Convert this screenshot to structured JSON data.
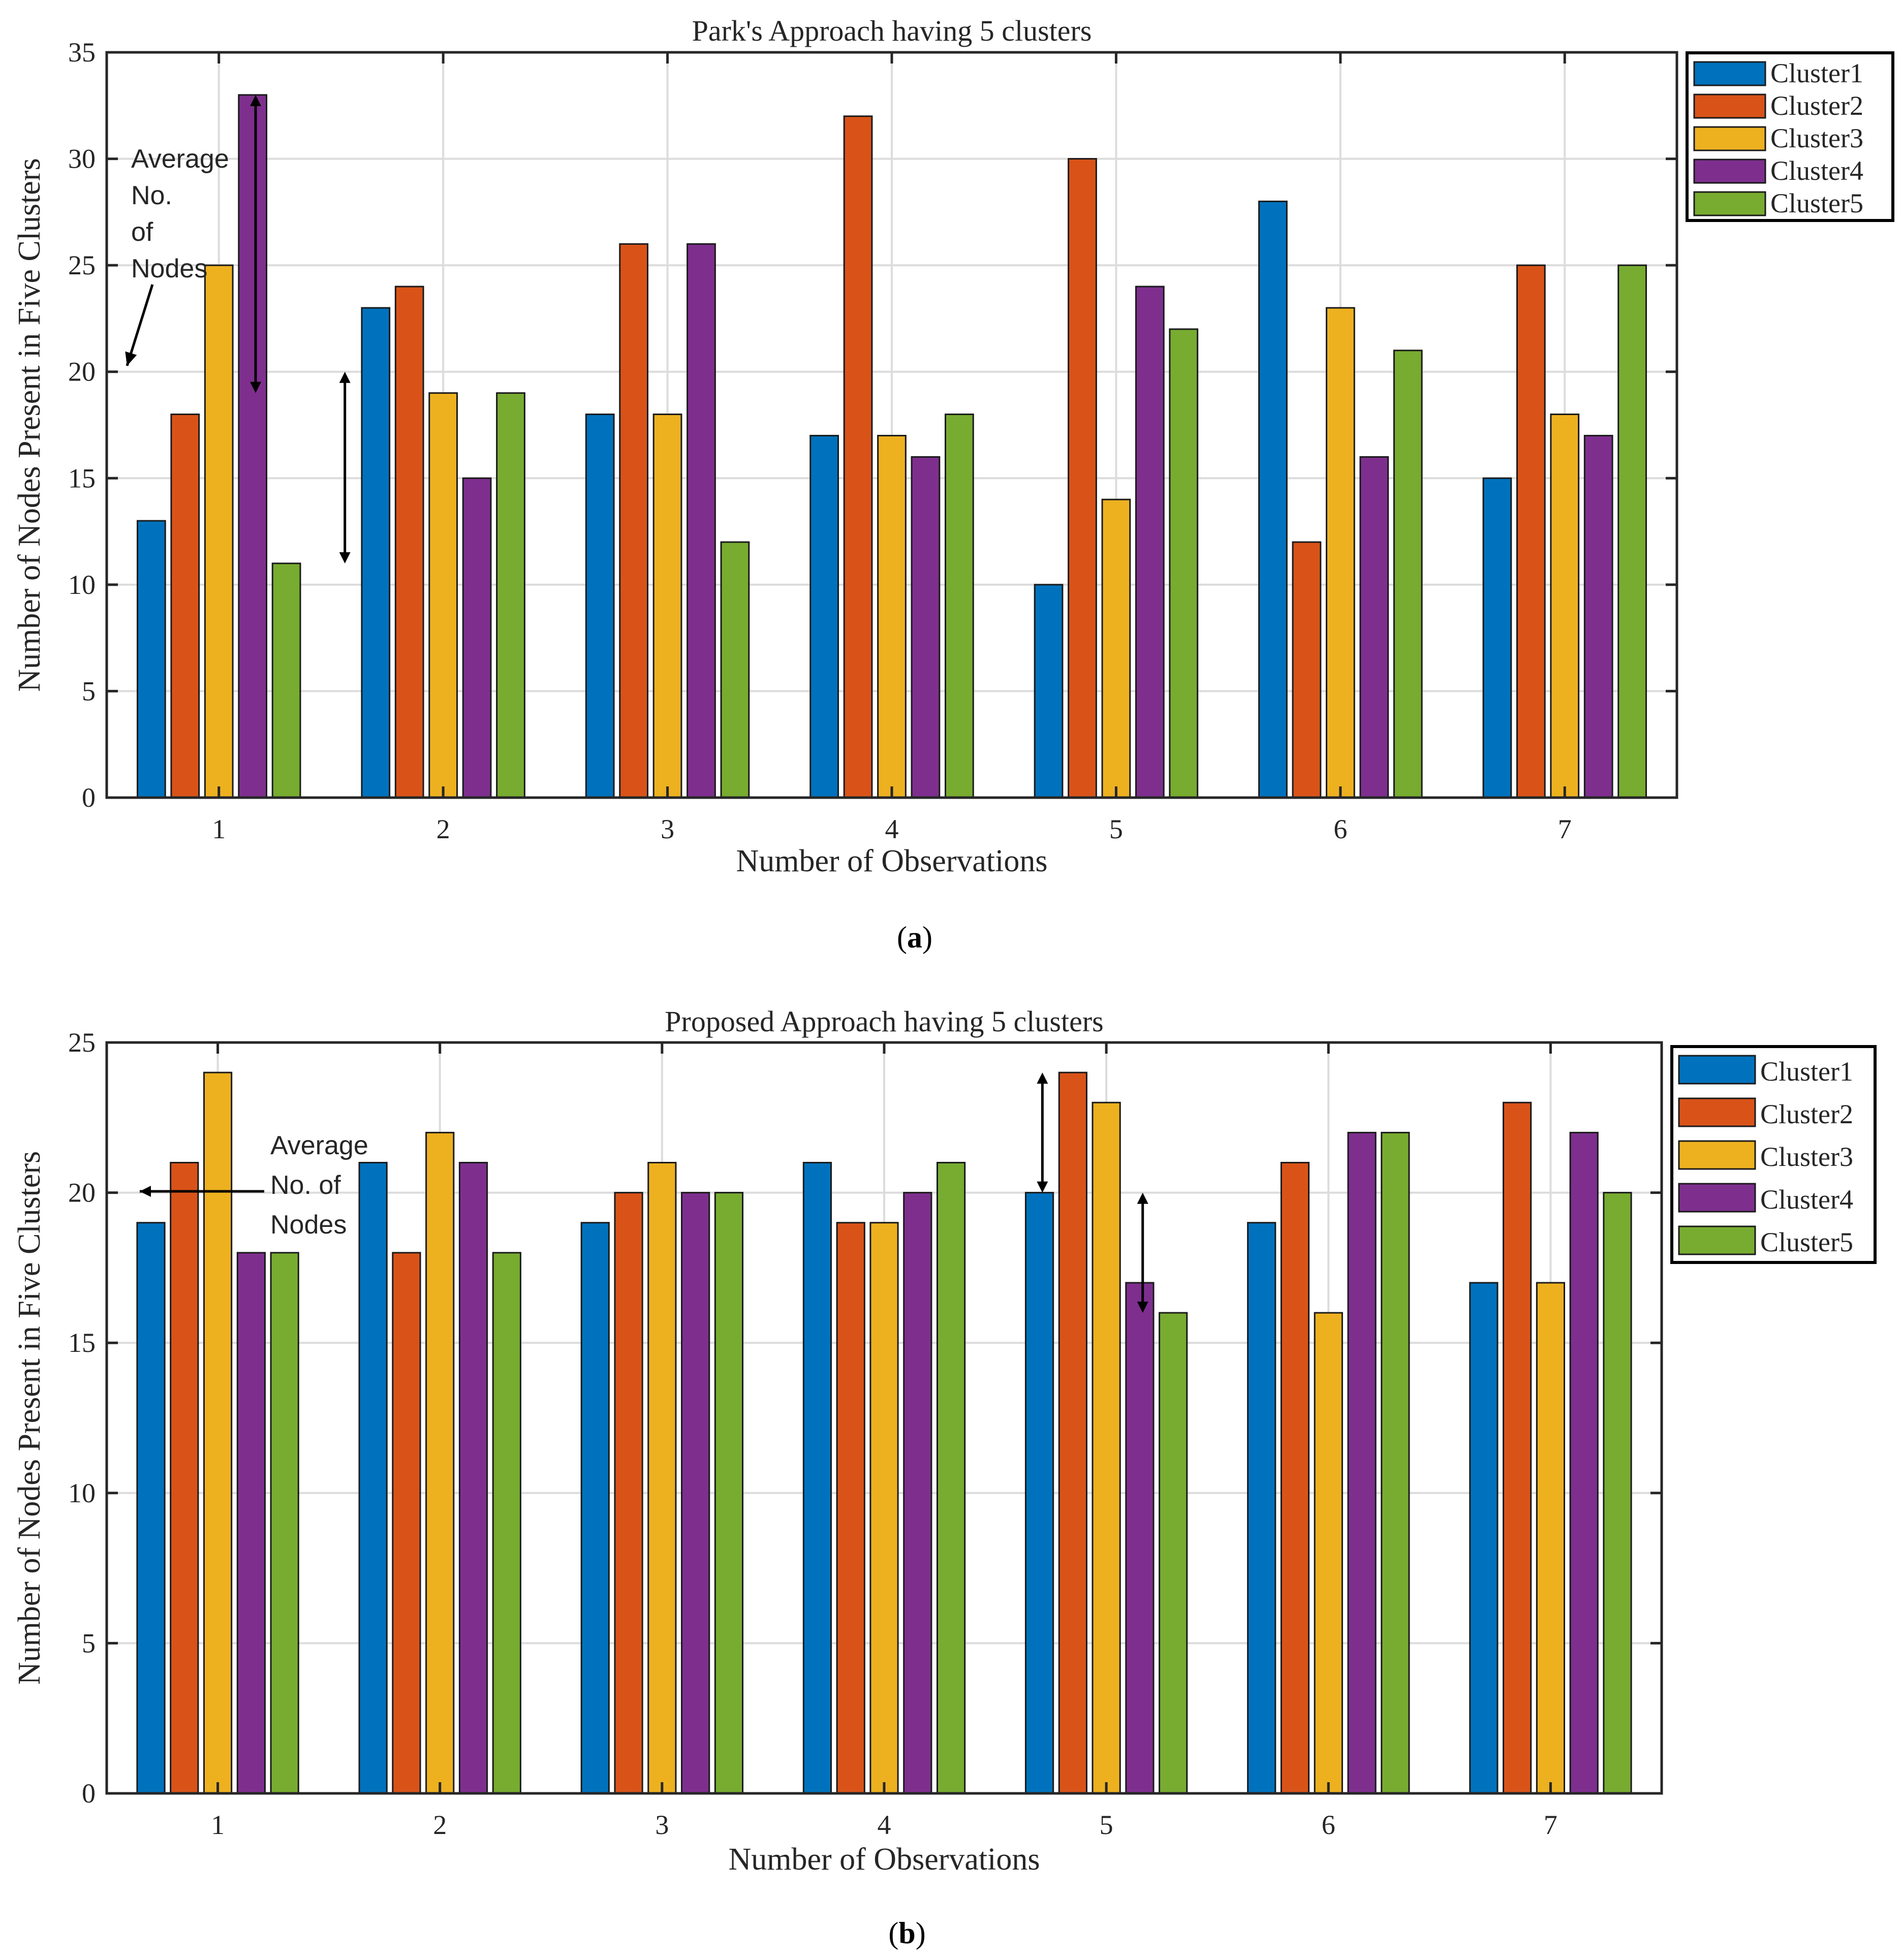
{
  "colors": [
    "#0072BD",
    "#D95319",
    "#EDB120",
    "#7E2F8E",
    "#77AC30"
  ],
  "chart_data": [
    {
      "type": "bar",
      "panel": "a",
      "caption_letter": "a",
      "title": "Park's Approach having 5 clusters",
      "xlabel": "Number of Observations",
      "ylabel": "Number of Nodes Present in Five Clusters",
      "categories": [
        "1",
        "2",
        "3",
        "4",
        "5",
        "6",
        "7"
      ],
      "ylim": [
        0,
        35
      ],
      "yticks": [
        "0",
        "5",
        "10",
        "15",
        "20",
        "25",
        "30",
        "35"
      ],
      "grid": true,
      "legend_position": "top-right outside",
      "series": [
        {
          "name": "Cluster1",
          "values": [
            13,
            23,
            18,
            17,
            10,
            28,
            15
          ]
        },
        {
          "name": "Cluster2",
          "values": [
            18,
            24,
            26,
            32,
            30,
            12,
            25
          ]
        },
        {
          "name": "Cluster3",
          "values": [
            25,
            19,
            18,
            17,
            14,
            23,
            18
          ]
        },
        {
          "name": "Cluster4",
          "values": [
            33,
            15,
            26,
            16,
            24,
            16,
            17
          ]
        },
        {
          "name": "Cluster5",
          "values": [
            11,
            19,
            12,
            18,
            22,
            21,
            25
          ]
        }
      ],
      "annotation": {
        "lines": [
          "Average",
          "No.",
          "of",
          "Nodes"
        ]
      }
    },
    {
      "type": "bar",
      "panel": "b",
      "caption_letter": "b",
      "title": "Proposed Approach having 5 clusters",
      "xlabel": "Number of Observations",
      "ylabel": "Number of Nodes Present in Five Clusters",
      "categories": [
        "1",
        "2",
        "3",
        "4",
        "5",
        "6",
        "7"
      ],
      "ylim": [
        0,
        25
      ],
      "yticks": [
        "0",
        "5",
        "10",
        "15",
        "20",
        "25"
      ],
      "grid": true,
      "legend_position": "top-right outside",
      "series": [
        {
          "name": "Cluster1",
          "values": [
            19,
            21,
            19,
            21,
            20,
            19,
            17
          ]
        },
        {
          "name": "Cluster2",
          "values": [
            21,
            18,
            20,
            19,
            24,
            21,
            23
          ]
        },
        {
          "name": "Cluster3",
          "values": [
            24,
            22,
            21,
            19,
            23,
            16,
            17
          ]
        },
        {
          "name": "Cluster4",
          "values": [
            18,
            21,
            20,
            20,
            17,
            22,
            22
          ]
        },
        {
          "name": "Cluster5",
          "values": [
            18,
            18,
            20,
            21,
            16,
            22,
            20
          ]
        }
      ],
      "annotation": {
        "lines": [
          "Average",
          "No. of",
          "Nodes"
        ]
      }
    }
  ]
}
